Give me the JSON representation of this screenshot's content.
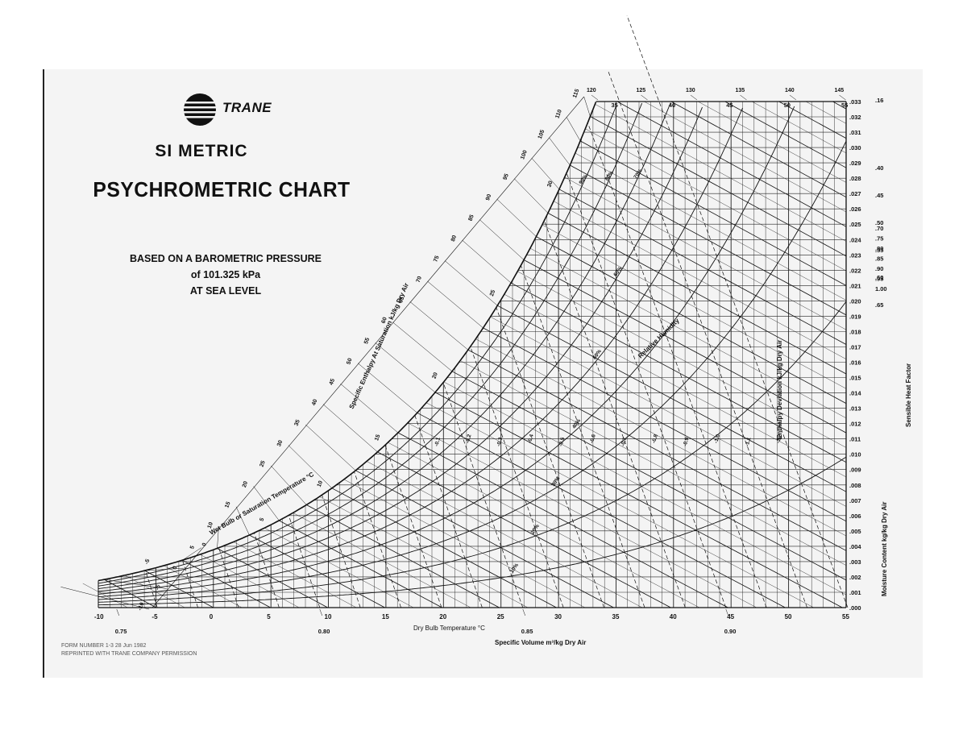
{
  "header": {
    "brand": "TRANE",
    "title_line1": "SI METRIC",
    "title_line2": "PSYCHROMETRIC CHART",
    "basis_line1": "BASED ON A BAROMETRIC PRESSURE",
    "basis_line2": "of 101.325 kPa",
    "basis_line3": "AT SEA LEVEL"
  },
  "footer": {
    "form_line1": "FORM NUMBER 1-3  28 Jun 1982",
    "form_line2": "REPRINTED WITH TRANE COMPANY PERMISSION"
  },
  "chart_data": {
    "type": "line",
    "title": "PSYCHROMETRIC CHART",
    "xlabel": "Dry Bulb Temperature °C",
    "ylabel": "Moisture Content kg/kg Dry Air",
    "volume_label": "Specific Volume m³/kg Dry Air",
    "enthalpy_label": "Specific Enthalpy At Saturation kJ/kg Dry Air",
    "wetbulb_label": "Wet Bulb or Saturation Temperature °C",
    "rh_label": "Relative Humidity",
    "deviation_label": "Enthalpy Deviation kJ/kg Dry Air",
    "shf_label": "Sensible Heat Factor",
    "xlim": [
      -10,
      55
    ],
    "ylim": [
      0.0,
      0.033
    ],
    "x_ticks": [
      -10,
      -5,
      0,
      5,
      10,
      15,
      20,
      25,
      30,
      35,
      40,
      45,
      50,
      55
    ],
    "x_tick_labels": [
      "-10",
      "-5",
      "0",
      "5",
      "10",
      "15",
      "20",
      "25",
      "30",
      "35",
      "40",
      "45",
      "50",
      "55"
    ],
    "y_ticks": [
      0.0,
      0.001,
      0.002,
      0.003,
      0.004,
      0.005,
      0.006,
      0.007,
      0.008,
      0.009,
      0.01,
      0.011,
      0.012,
      0.013,
      0.014,
      0.015,
      0.016,
      0.017,
      0.018,
      0.019,
      0.02,
      0.021,
      0.022,
      0.023,
      0.024,
      0.025,
      0.026,
      0.027,
      0.028,
      0.029,
      0.03,
      0.031,
      0.032,
      0.033
    ],
    "y_tick_labels": [
      ".000",
      ".001",
      ".002",
      ".003",
      ".004",
      ".005",
      ".006",
      ".007",
      ".008",
      ".009",
      ".010",
      ".011",
      ".012",
      ".013",
      ".014",
      ".015",
      ".016",
      ".017",
      ".018",
      ".019",
      ".020",
      ".021",
      ".022",
      ".023",
      ".024",
      ".025",
      ".026",
      ".027",
      ".028",
      ".029",
      ".030",
      ".031",
      ".032",
      ".033"
    ],
    "top_temp_labels": [
      "35",
      "40",
      "45",
      "50",
      "55"
    ],
    "top_temp_values": [
      35,
      40,
      45,
      50,
      55
    ],
    "top_enthalpy_labels": [
      "120",
      "125",
      "130",
      "135",
      "140",
      "145"
    ],
    "enthalpy_scale_labels": [
      "-10",
      "-5",
      "0",
      "5",
      "10",
      "15",
      "20",
      "25",
      "30",
      "35",
      "40",
      "45",
      "50",
      "55",
      "60",
      "65",
      "70",
      "75",
      "80",
      "85",
      "90",
      "95",
      "100",
      "105",
      "110",
      "115"
    ],
    "enthalpy_scale_values": [
      -10,
      -5,
      0,
      5,
      10,
      15,
      20,
      25,
      30,
      35,
      40,
      45,
      50,
      55,
      60,
      65,
      70,
      75,
      80,
      85,
      90,
      95,
      100,
      105,
      110,
      115
    ],
    "wetbulb_labels": [
      "-5",
      "0",
      "5",
      "10",
      "15",
      "20",
      "25",
      "30"
    ],
    "wetbulb_values": [
      -5,
      0,
      5,
      10,
      15,
      20,
      25,
      30
    ],
    "specific_volume_labels": [
      "0.75",
      "0.80",
      "0.85",
      "0.90"
    ],
    "specific_volume_values": [
      0.75,
      0.8,
      0.85,
      0.9
    ],
    "volume_line_values": [
      0.76,
      0.77,
      0.78,
      0.79,
      0.8,
      0.81,
      0.82,
      0.83,
      0.84,
      0.85,
      0.86,
      0.87,
      0.88,
      0.89,
      0.9,
      0.91,
      0.92,
      0.93
    ],
    "relative_humidity_labels": [
      "10%",
      "20%",
      "30%",
      "40%",
      "50%",
      "60%",
      "70%",
      "80%",
      "90%"
    ],
    "relative_humidity_values": [
      10,
      20,
      30,
      40,
      50,
      60,
      70,
      80,
      90
    ],
    "enthalpy_deviation_labels": [
      "-0.1",
      "-0.2",
      "-0.3",
      "-0.4",
      "-0.5",
      "-0.6",
      "-0.7",
      "-0.8",
      "-0.9",
      "-1.0",
      "-1.1",
      "-1.2"
    ],
    "sensible_heat_factor_labels": [
      ".16",
      ".40",
      ".45",
      ".50",
      ".55",
      ".60",
      ".65",
      ".70",
      ".75",
      ".80",
      ".85",
      ".90",
      ".95",
      "1.00"
    ]
  }
}
